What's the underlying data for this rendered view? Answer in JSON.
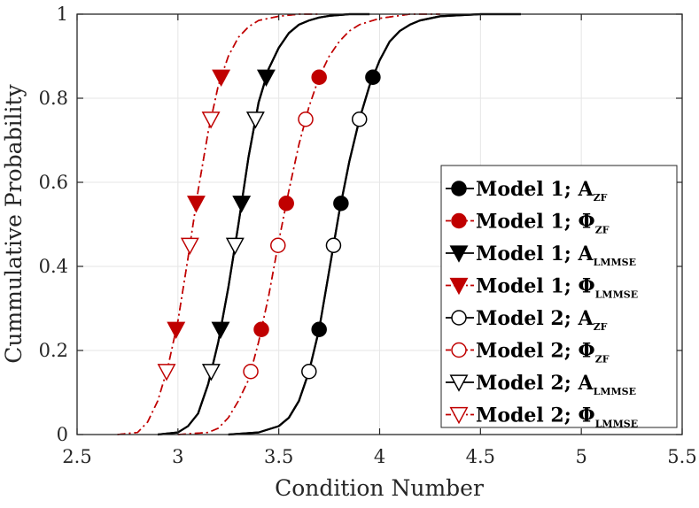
{
  "chart_data": {
    "type": "line",
    "title": "",
    "xlabel": "Condition Number",
    "ylabel": "Cummulative Probability",
    "xlim": [
      2.5,
      5.5
    ],
    "ylim": [
      0,
      1
    ],
    "xticks": [
      2.5,
      3,
      3.5,
      4,
      4.5,
      5,
      5.5
    ],
    "xtick_labels": [
      "2.5",
      "3",
      "3.5",
      "4",
      "4.5",
      "5",
      "5.5"
    ],
    "yticks": [
      0,
      0.2,
      0.4,
      0.6,
      0.8,
      1
    ],
    "ytick_labels": [
      "0",
      "0.2",
      "0.4",
      "0.6",
      "0.8",
      "1"
    ],
    "grid": true,
    "legend_position": "bottom-right",
    "marker_probabilities": [
      0.15,
      0.25,
      0.45,
      0.55,
      0.75,
      0.85
    ],
    "series": [
      {
        "name": "Model 1; A_ZF",
        "label_main": "Model 1; A",
        "label_sub": "ZF",
        "color": "#000000",
        "line_style": "solid",
        "marker": "circle",
        "marker_fill": "#000000",
        "marker_at": [
          0.25,
          0.55,
          0.85
        ],
        "x": [
          3.25,
          3.4,
          3.5,
          3.55,
          3.6,
          3.65,
          3.7,
          3.75,
          3.8,
          3.85,
          3.9,
          3.95,
          4.0,
          4.05,
          4.1,
          4.15,
          4.2,
          4.3,
          4.5,
          4.7
        ],
        "y": [
          0,
          0.005,
          0.02,
          0.04,
          0.08,
          0.15,
          0.25,
          0.39,
          0.53,
          0.65,
          0.75,
          0.83,
          0.89,
          0.935,
          0.96,
          0.975,
          0.985,
          0.995,
          1,
          1
        ]
      },
      {
        "name": "Model 1; Φ_ZF",
        "label_main": "Model 1; Φ",
        "label_sub": "ZF",
        "color": "#c00000",
        "line_style": "dashdot",
        "marker": "circle",
        "marker_fill": "#c00000",
        "marker_at": [
          0.25,
          0.55,
          0.85
        ],
        "x": [
          3.0,
          3.15,
          3.2,
          3.25,
          3.3,
          3.35,
          3.4,
          3.45,
          3.5,
          3.55,
          3.6,
          3.65,
          3.7,
          3.75,
          3.8,
          3.85,
          3.9,
          4.0,
          4.15,
          4.3
        ],
        "y": [
          0,
          0.005,
          0.015,
          0.04,
          0.08,
          0.13,
          0.22,
          0.33,
          0.46,
          0.58,
          0.69,
          0.78,
          0.85,
          0.9,
          0.935,
          0.96,
          0.975,
          0.99,
          1,
          1
        ]
      },
      {
        "name": "Model 1; A_LMMSE",
        "label_main": "Model 1; A",
        "label_sub": "LMMSE",
        "color": "#000000",
        "line_style": "solid",
        "marker": "triangle-down",
        "marker_fill": "#000000",
        "marker_at": [
          0.25,
          0.55,
          0.85
        ],
        "x": [
          2.9,
          3.0,
          3.05,
          3.1,
          3.15,
          3.2,
          3.25,
          3.3,
          3.35,
          3.4,
          3.45,
          3.5,
          3.55,
          3.6,
          3.65,
          3.7,
          3.75,
          3.85,
          3.95
        ],
        "y": [
          0,
          0.005,
          0.02,
          0.05,
          0.12,
          0.22,
          0.35,
          0.5,
          0.66,
          0.79,
          0.87,
          0.92,
          0.955,
          0.975,
          0.985,
          0.992,
          0.996,
          1,
          1
        ]
      },
      {
        "name": "Model 1; Φ_LMMSE",
        "label_main": "Model 1; Φ",
        "label_sub": "LMMSE",
        "color": "#c00000",
        "line_style": "dashdot",
        "marker": "triangle-down",
        "marker_fill": "#c00000",
        "marker_at": [
          0.25,
          0.55,
          0.85
        ],
        "x": [
          2.7,
          2.8,
          2.85,
          2.9,
          2.95,
          3.0,
          3.05,
          3.1,
          3.15,
          3.2,
          3.25,
          3.3,
          3.35,
          3.4,
          3.5,
          3.6,
          3.7
        ],
        "y": [
          0,
          0.005,
          0.03,
          0.08,
          0.16,
          0.27,
          0.42,
          0.58,
          0.72,
          0.83,
          0.9,
          0.945,
          0.97,
          0.985,
          0.995,
          1,
          1
        ]
      },
      {
        "name": "Model 2; A_ZF",
        "label_main": "Model 2; A",
        "label_sub": "ZF",
        "color": "#000000",
        "line_style": "solid",
        "marker": "circle",
        "marker_fill": "#ffffff",
        "marker_at": [
          0.15,
          0.45,
          0.75
        ],
        "x": [
          3.25,
          3.4,
          3.5,
          3.55,
          3.6,
          3.65,
          3.7,
          3.75,
          3.8,
          3.85,
          3.9,
          3.95,
          4.0,
          4.05,
          4.1,
          4.15,
          4.2,
          4.3,
          4.5,
          4.7
        ],
        "y": [
          0,
          0.005,
          0.02,
          0.04,
          0.08,
          0.15,
          0.25,
          0.39,
          0.53,
          0.65,
          0.75,
          0.83,
          0.89,
          0.935,
          0.96,
          0.975,
          0.985,
          0.995,
          1,
          1
        ]
      },
      {
        "name": "Model 2; Φ_ZF",
        "label_main": "Model 2; Φ",
        "label_sub": "ZF",
        "color": "#c00000",
        "line_style": "dashdot",
        "marker": "circle",
        "marker_fill": "#ffffff",
        "marker_at": [
          0.15,
          0.45,
          0.75
        ],
        "x": [
          3.0,
          3.15,
          3.2,
          3.25,
          3.3,
          3.35,
          3.4,
          3.45,
          3.5,
          3.55,
          3.6,
          3.65,
          3.7,
          3.75,
          3.8,
          3.85,
          3.9,
          4.0,
          4.15,
          4.3
        ],
        "y": [
          0,
          0.005,
          0.015,
          0.04,
          0.08,
          0.13,
          0.22,
          0.33,
          0.46,
          0.58,
          0.69,
          0.78,
          0.85,
          0.9,
          0.935,
          0.96,
          0.975,
          0.99,
          1,
          1
        ]
      },
      {
        "name": "Model 2; A_LMMSE",
        "label_main": "Model 2; A",
        "label_sub": "LMMSE",
        "color": "#000000",
        "line_style": "solid",
        "marker": "triangle-down",
        "marker_fill": "#ffffff",
        "marker_at": [
          0.15,
          0.45,
          0.75
        ],
        "x": [
          2.9,
          3.0,
          3.05,
          3.1,
          3.15,
          3.2,
          3.25,
          3.3,
          3.35,
          3.4,
          3.45,
          3.5,
          3.55,
          3.6,
          3.65,
          3.7,
          3.75,
          3.85,
          3.95
        ],
        "y": [
          0,
          0.005,
          0.02,
          0.05,
          0.12,
          0.22,
          0.35,
          0.5,
          0.66,
          0.79,
          0.87,
          0.92,
          0.955,
          0.975,
          0.985,
          0.992,
          0.996,
          1,
          1
        ]
      },
      {
        "name": "Model 2; Φ_LMMSE",
        "label_main": "Model 2; Φ",
        "label_sub": "LMMSE",
        "color": "#c00000",
        "line_style": "dashdot",
        "marker": "triangle-down",
        "marker_fill": "#ffffff",
        "marker_at": [
          0.15,
          0.45,
          0.75
        ],
        "x": [
          2.7,
          2.8,
          2.85,
          2.9,
          2.95,
          3.0,
          3.05,
          3.1,
          3.15,
          3.2,
          3.25,
          3.3,
          3.35,
          3.4,
          3.5,
          3.6,
          3.7
        ],
        "y": [
          0,
          0.005,
          0.03,
          0.08,
          0.16,
          0.27,
          0.42,
          0.58,
          0.72,
          0.83,
          0.9,
          0.945,
          0.97,
          0.985,
          0.995,
          1,
          1
        ]
      }
    ]
  }
}
